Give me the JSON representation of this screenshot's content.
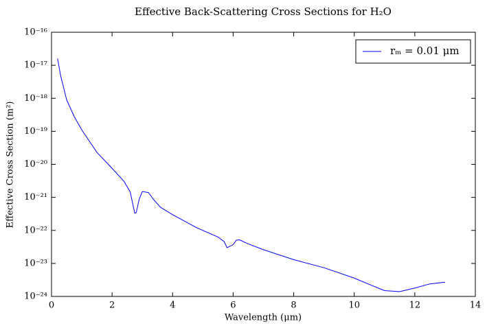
{
  "chart_data": {
    "type": "line",
    "title": "Effective Back-Scattering Cross Sections for H₂O",
    "xlabel": "Wavelength (μm)",
    "ylabel": "Effective Cross Section (m²)",
    "log_y": true,
    "legend": "upper right",
    "xlim": [
      0,
      14
    ],
    "xticks": [
      0,
      2,
      4,
      6,
      8,
      10,
      12,
      14
    ],
    "ylim": [
      1e-24,
      1e-16
    ],
    "yticks": [
      {
        "value": 1e-24,
        "label": "10⁻²⁴"
      },
      {
        "value": 1e-23,
        "label": "10⁻²³"
      },
      {
        "value": 1e-22,
        "label": "10⁻²²"
      },
      {
        "value": 1e-21,
        "label": "10⁻²¹"
      },
      {
        "value": 1e-20,
        "label": "10⁻²⁰"
      },
      {
        "value": 1e-19,
        "label": "10⁻¹⁹"
      },
      {
        "value": 1e-18,
        "label": "10⁻¹⁸"
      },
      {
        "value": 1e-17,
        "label": "10⁻¹⁷"
      },
      {
        "value": 1e-16,
        "label": "10⁻¹⁶"
      }
    ],
    "x": [
      0.2,
      0.3,
      0.5,
      0.75,
      1.0,
      1.5,
      2.0,
      2.4,
      2.6,
      2.75,
      2.8,
      2.9,
      3.0,
      3.2,
      3.4,
      3.6,
      4.0,
      4.8,
      5.5,
      5.7,
      5.8,
      6.0,
      6.1,
      6.2,
      6.5,
      7,
      8,
      9,
      10,
      10.5,
      11,
      11.5,
      12,
      12.5,
      13
    ],
    "series": [
      {
        "name": "rₘ = 0.01 μm",
        "color": "#0000ff",
        "values": [
          1.6e-17,
          4.9e-18,
          9e-19,
          2.8e-19,
          1.1e-19,
          2.3e-20,
          7.6e-21,
          3e-21,
          1.45e-21,
          3.3e-22,
          3.5e-22,
          9e-22,
          1.5e-21,
          1.4e-21,
          8e-22,
          5e-22,
          3e-22,
          1.2e-22,
          6.3e-23,
          4.6e-23,
          3e-23,
          3.7e-23,
          5e-23,
          5.2e-23,
          3.9e-23,
          2.6e-23,
          1.3e-23,
          7.4e-24,
          3.6e-24,
          2.3e-24,
          1.5e-24,
          1.4e-24,
          1.8e-24,
          2.4e-24,
          2.7e-24
        ]
      }
    ]
  }
}
